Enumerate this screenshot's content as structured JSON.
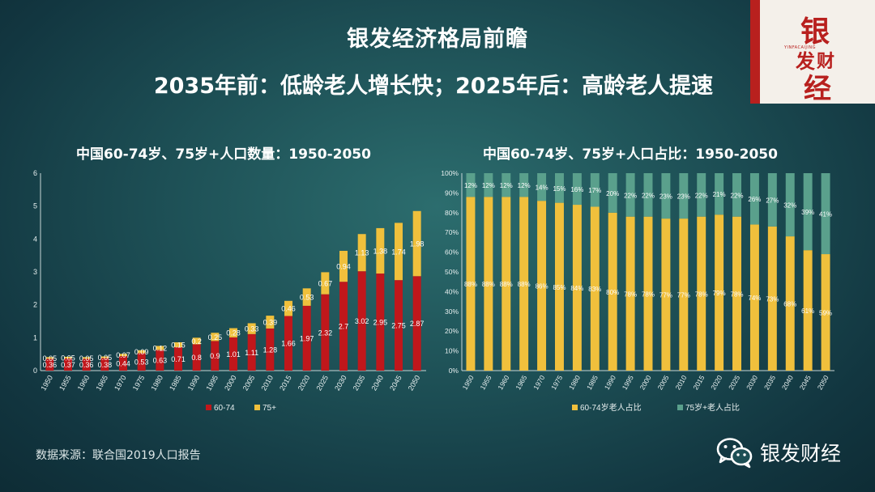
{
  "header": {
    "title": "银发经济格局前瞻",
    "subtitle": "2035年前：低龄老人增长快；2025年后：高龄老人提速"
  },
  "logo": {
    "chars": [
      "银",
      "发",
      "财",
      "经"
    ],
    "sub": "YINFACAIJING"
  },
  "source": "数据来源：联合国2019人口报告",
  "brand": {
    "label": "银发财经",
    "icon": "wechat-icon"
  },
  "colors": {
    "red": "#c0171b",
    "yellow": "#f0c03c",
    "teal": "#5aa08c"
  },
  "chart_data": [
    {
      "type": "bar",
      "stacked": true,
      "title": "中国60-74岁、75岁+人口数量：1950-2050",
      "categories": [
        "1950",
        "1955",
        "1960",
        "1965",
        "1970",
        "1975",
        "1980",
        "1985",
        "1990",
        "1995",
        "2000",
        "2005",
        "2010",
        "2015",
        "2020",
        "2025",
        "2030",
        "2035",
        "2040",
        "2045",
        "2050"
      ],
      "series": [
        {
          "name": "60-74",
          "values": [
            0.36,
            0.37,
            0.36,
            0.38,
            0.44,
            0.53,
            0.63,
            0.71,
            0.8,
            0.9,
            1.01,
            1.11,
            1.28,
            1.66,
            1.97,
            2.32,
            2.7,
            3.02,
            2.95,
            2.75,
            2.87
          ],
          "labels": [
            "0.36",
            "0.37",
            "0.36",
            "0.38",
            "0.44",
            "0.53",
            "0.63",
            "0.71",
            "0.8",
            "0.9",
            "1.01",
            "1.11",
            "1.28",
            "1.66",
            "1.97",
            "2.32",
            "2.7",
            "3.02",
            "2.95",
            "2.75",
            "2.87"
          ]
        },
        {
          "name": "75+",
          "values": [
            0.05,
            0.05,
            0.05,
            0.05,
            0.07,
            0.09,
            0.12,
            0.15,
            0.2,
            0.25,
            0.28,
            0.33,
            0.39,
            0.46,
            0.53,
            0.67,
            0.94,
            1.13,
            1.38,
            1.74,
            1.98
          ],
          "labels": [
            "0.05",
            "0.05",
            "0.05",
            "0.05",
            "0.07",
            "0.09",
            "0.12",
            "0.15",
            "0.2",
            "0.25",
            "0.28",
            "0.33",
            "0.39",
            "0.46",
            "0.53",
            "0.67",
            "0.94",
            "1.13",
            "1.38",
            "1.74",
            "1.98"
          ]
        }
      ],
      "ylim": [
        0,
        6
      ],
      "yticks": [
        "0",
        "1",
        "2",
        "3",
        "4",
        "5",
        "6"
      ],
      "grid": false,
      "legend": "bottom"
    },
    {
      "type": "bar",
      "stacked": true,
      "title": "中国60-74岁、75岁+人口占比：1950-2050",
      "categories": [
        "1950",
        "1955",
        "1960",
        "1965",
        "1970",
        "1975",
        "1980",
        "1985",
        "1990",
        "1995",
        "2000",
        "2005",
        "2010",
        "2015",
        "2020",
        "2025",
        "2030",
        "2035",
        "2040",
        "2045",
        "2050"
      ],
      "series": [
        {
          "name": "60-74岁老人占比",
          "values": [
            88,
            88,
            88,
            88,
            86,
            85,
            84,
            83,
            80,
            78,
            78,
            77,
            77,
            78,
            79,
            78,
            74,
            73,
            68,
            61,
            59
          ],
          "labels": [
            "88%",
            "88%",
            "88%",
            "88%",
            "86%",
            "85%",
            "84%",
            "83%",
            "80%",
            "78%",
            "78%",
            "77%",
            "77%",
            "78%",
            "79%",
            "78%",
            "74%",
            "73%",
            "68%",
            "61%",
            "59%"
          ]
        },
        {
          "name": "75岁+老人占比",
          "values": [
            12,
            12,
            12,
            12,
            14,
            15,
            16,
            17,
            20,
            22,
            22,
            23,
            23,
            22,
            21,
            22,
            26,
            27,
            32,
            39,
            41
          ],
          "labels": [
            "12%",
            "12%",
            "12%",
            "12%",
            "14%",
            "15%",
            "16%",
            "17%",
            "20%",
            "22%",
            "22%",
            "23%",
            "23%",
            "22%",
            "21%",
            "22%",
            "26%",
            "27%",
            "32%",
            "39%",
            "41%"
          ]
        }
      ],
      "ylim": [
        0,
        100
      ],
      "yticks": [
        "0%",
        "10%",
        "20%",
        "30%",
        "40%",
        "50%",
        "60%",
        "70%",
        "80%",
        "90%",
        "100%"
      ],
      "grid": false,
      "legend": "bottom"
    }
  ]
}
